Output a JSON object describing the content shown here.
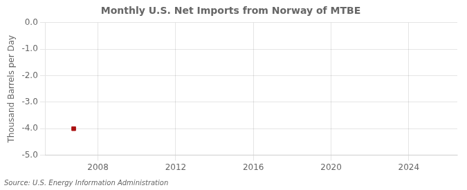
{
  "chart_data": {
    "type": "scatter",
    "title": "Monthly U.S. Net Imports from Norway of MTBE",
    "ylabel": "Thousand Barrels per Day",
    "source": "Source: U.S. Energy Information Administration",
    "x": [
      2006.75
    ],
    "values": [
      -4.0
    ],
    "color": "#aa1111",
    "marker": "square",
    "xlim": [
      2005.3,
      2026.5
    ],
    "xticks": [
      2008,
      2012,
      2016,
      2020,
      2024
    ],
    "ylim": [
      -5.0,
      0.0
    ],
    "yticks": [
      {
        "value": 0.0,
        "label": "0.0"
      },
      {
        "value": -1.0,
        "label": "-1.0"
      },
      {
        "value": -2.0,
        "label": "-2.0"
      },
      {
        "value": -3.0,
        "label": "-3.0"
      },
      {
        "value": -4.0,
        "label": "-4.0"
      },
      {
        "value": -5.0,
        "label": "-5.0"
      }
    ],
    "grid": true
  }
}
